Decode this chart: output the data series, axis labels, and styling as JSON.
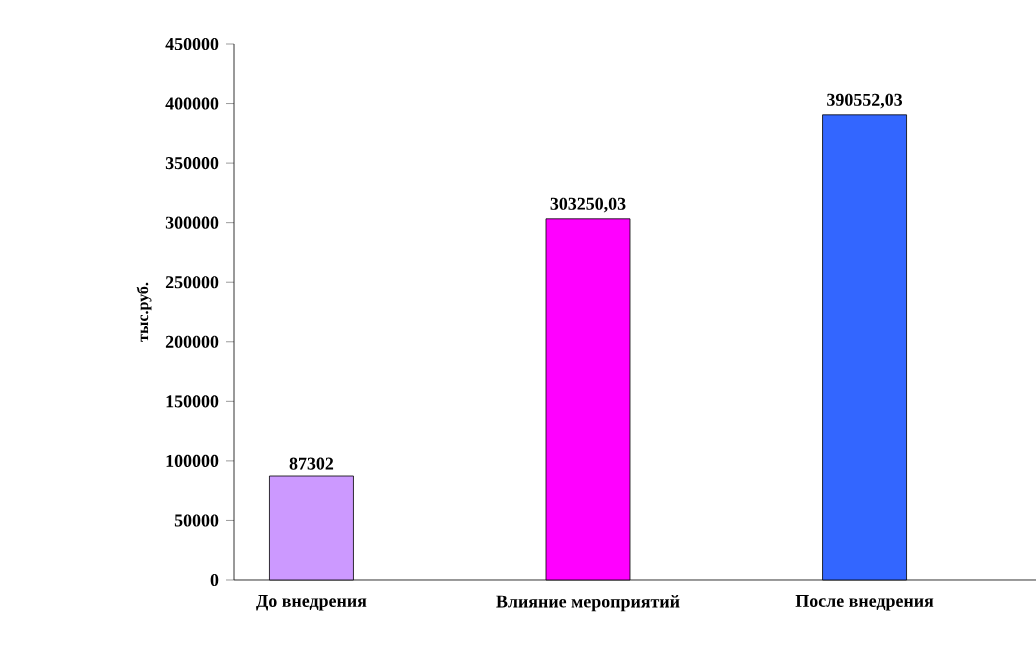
{
  "chart_data": {
    "type": "bar",
    "ylabel": "тыс.руб.",
    "categories": [
      "До внедрения",
      "Влияние мероприятий",
      "После внедрения"
    ],
    "values": [
      87302,
      303250.03,
      390552.03
    ],
    "value_labels": [
      "87302",
      "303250,03",
      "390552,03"
    ],
    "colors": [
      "#cc99ff",
      "#ff00ff",
      "#3366ff"
    ],
    "ylim": [
      0,
      450000
    ],
    "yticks": [
      0,
      50000,
      100000,
      150000,
      200000,
      250000,
      300000,
      350000,
      400000,
      450000
    ],
    "grid": false
  }
}
